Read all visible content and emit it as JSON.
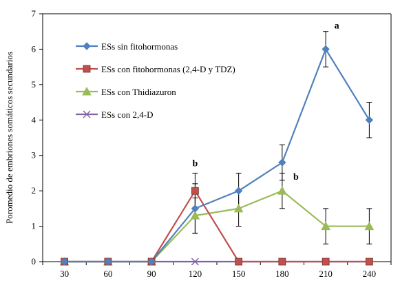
{
  "chart_data": {
    "type": "line",
    "ylabel": "Poromedio de embriones somáticos secundarios",
    "xlabel": "",
    "x": [
      30,
      60,
      90,
      120,
      150,
      180,
      210,
      240
    ],
    "ylim": [
      0,
      7
    ],
    "yticks": [
      0,
      1,
      2,
      3,
      4,
      5,
      6,
      7
    ],
    "grid": false,
    "legend_position": "top-left",
    "series": [
      {
        "name": "ESs sin fitohormonas",
        "color": "#4F81BD",
        "marker": "diamond",
        "values": [
          0,
          0,
          0,
          1.5,
          2.0,
          2.8,
          6.0,
          4.0
        ],
        "errors": [
          0,
          0,
          0,
          0.7,
          0.5,
          0.5,
          0.5,
          0.5
        ]
      },
      {
        "name": "ESs con fitohormonas (2,4-D y TDZ)",
        "color": "#C0504D",
        "marker": "square",
        "values": [
          0,
          0,
          0,
          2.0,
          0,
          0,
          0,
          0
        ],
        "errors": [
          0,
          0,
          0,
          0.5,
          0,
          0,
          0,
          0
        ]
      },
      {
        "name": "ESs con Thidiazuron",
        "color": "#9BBB59",
        "marker": "triangle",
        "values": [
          0,
          0,
          0,
          1.3,
          1.5,
          2.0,
          1.0,
          1.0
        ],
        "errors": [
          0,
          0,
          0,
          0.5,
          0.5,
          0.5,
          0.5,
          0.5
        ]
      },
      {
        "name": "ESs con 2,4-D",
        "color": "#8064A2",
        "marker": "x",
        "values": [
          0,
          0,
          0,
          0,
          0,
          0,
          0,
          0
        ],
        "errors": [
          0,
          0,
          0,
          0,
          0,
          0,
          0,
          0
        ]
      }
    ],
    "annotations": [
      {
        "text": "a",
        "x": 210,
        "y": 6.5
      },
      {
        "text": "b",
        "x": 120,
        "y": 2.5
      },
      {
        "text": "b",
        "x": 180,
        "y": 2.0
      }
    ]
  }
}
